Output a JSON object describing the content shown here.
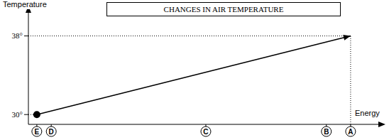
{
  "chart_data": {
    "type": "line",
    "title": "CHANGES IN AIR TEMPERATURE",
    "x_label": "Energy",
    "y_label": "Temperature",
    "x": [
      2.4,
      91.7
    ],
    "values": [
      30,
      38
    ],
    "color": "#000000",
    "marker": "circle",
    "line_style": "solid",
    "xlim": [
      0,
      100
    ],
    "xticks": [
      {
        "value": 2.4,
        "label": "E"
      },
      {
        "value": 6.5,
        "label": "D"
      },
      {
        "value": 50.5,
        "label": "C"
      },
      {
        "value": 84.8,
        "label": "B"
      },
      {
        "value": 91.7,
        "label": "A"
      }
    ],
    "ylim": [
      29,
      40.5
    ],
    "yticks": [
      {
        "value": 30,
        "label": "30°"
      },
      {
        "value": 38,
        "label": "38°"
      }
    ],
    "grid": false
  }
}
